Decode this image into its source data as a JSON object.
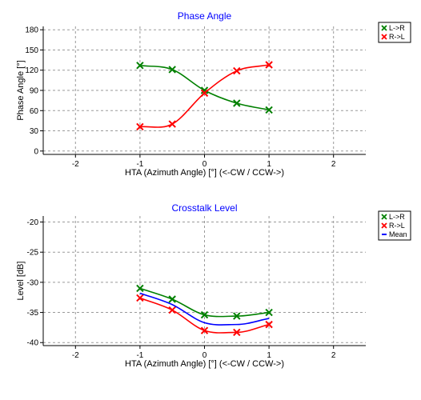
{
  "colors": {
    "l_to_r": "#008000",
    "r_to_l": "#ff0000",
    "mean": "#0000ff",
    "title": "#0000ff",
    "grid": "#9a9a9a"
  },
  "chart_data": [
    {
      "type": "line",
      "title": "Phase Angle",
      "xlabel": "HTA (Azimuth Angle) [°] (<-CW / CCW->)",
      "ylabel": "Phase Angle [°]",
      "xlim": [
        -2.5,
        2.5
      ],
      "ylim": [
        -5,
        185
      ],
      "xticks": [
        -2,
        -1,
        0,
        1,
        2
      ],
      "yticks": [
        0,
        30,
        60,
        90,
        120,
        150,
        180
      ],
      "grid": true,
      "legend_position": "top-right",
      "x": [
        -1,
        -0.5,
        0,
        0.5,
        1
      ],
      "series": [
        {
          "name": "L->R",
          "color_key": "l_to_r",
          "marker": "x",
          "values": [
            127,
            121,
            90,
            71,
            61
          ]
        },
        {
          "name": "R->L",
          "color_key": "r_to_l",
          "marker": "x",
          "values": [
            36,
            40,
            86,
            119,
            128
          ]
        }
      ]
    },
    {
      "type": "line",
      "title": "Crosstalk Level",
      "xlabel": "HTA (Azimuth Angle) [°] (<-CW / CCW->)",
      "ylabel": "Level [dB]",
      "xlim": [
        -2.5,
        2.5
      ],
      "ylim": [
        -40.5,
        -19
      ],
      "xticks": [
        -2,
        -1,
        0,
        1,
        2
      ],
      "yticks": [
        -20,
        -25,
        -30,
        -35,
        -40
      ],
      "grid": true,
      "legend_position": "top-right",
      "x": [
        -1,
        -0.5,
        0,
        0.5,
        1
      ],
      "series": [
        {
          "name": "L->R",
          "color_key": "l_to_r",
          "marker": "x",
          "values": [
            -31.0,
            -32.8,
            -35.4,
            -35.6,
            -35.0
          ]
        },
        {
          "name": "R->L",
          "color_key": "r_to_l",
          "marker": "x",
          "values": [
            -32.6,
            -34.6,
            -38.0,
            -38.3,
            -37.0
          ]
        },
        {
          "name": "Mean",
          "color_key": "mean",
          "marker": "none",
          "values": [
            -31.8,
            -33.7,
            -36.7,
            -37.0,
            -36.0
          ]
        }
      ]
    }
  ]
}
